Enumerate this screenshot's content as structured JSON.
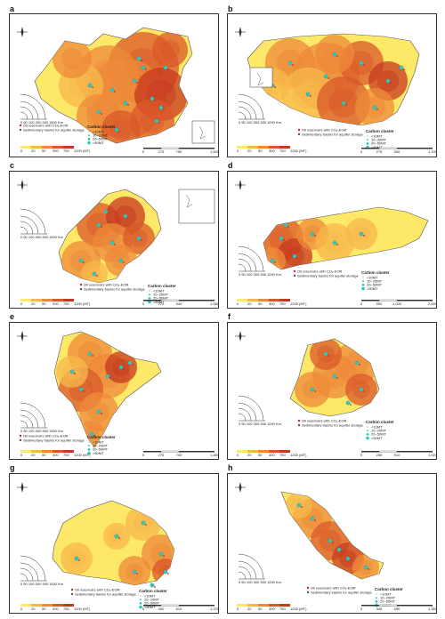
{
  "panels": [
    {
      "id": "a",
      "label": "a",
      "legend_title": "Carbon cluster",
      "cluster_items": [
        "<10MT",
        "10~20MT",
        "20~50MT",
        ">50MT"
      ],
      "oil_label": "Oil reservoirs with CO₂-EOR",
      "basin_label": "Sedimentary basins for aquifer storage",
      "color_scale_ticks": [
        "0",
        "20",
        "50",
        "300",
        "750",
        "1200 (MT)"
      ],
      "scale_ticks": [
        "0",
        "275",
        "750",
        "1,500"
      ],
      "radius_ticks": [
        "0 50 100 300 500",
        "1500 Km"
      ]
    },
    {
      "id": "b",
      "label": "b",
      "legend_title": "Carbon cluster",
      "cluster_items": [
        "<10MT",
        "10~20MT",
        "20~50MT",
        ">50MT"
      ],
      "oil_label": "Oil reservoirs with CO₂-EOR",
      "basin_label": "Sedimentary basins for aquifer storage",
      "color_scale_ticks": [
        "0",
        "20",
        "50",
        "300",
        "750",
        "1200 (MT)"
      ],
      "scale_ticks": [
        "0",
        "275",
        "550",
        "1,100"
      ],
      "radius_ticks": [
        "0 50 100 300 500",
        "1000 Km"
      ]
    },
    {
      "id": "c",
      "label": "c",
      "legend_title": "Carbon cluster",
      "cluster_items": [
        "<10MT",
        "10~20MT",
        "20~50MT",
        ">50MT"
      ],
      "oil_label": "Oil reservoirs with CO₂-EOR",
      "basin_label": "Sedimentary basins for aquifer storage",
      "color_scale_ticks": [
        "0",
        "20",
        "50",
        "300",
        "750",
        "1200 (MT)"
      ],
      "scale_ticks": [
        "0",
        "270",
        "540",
        "1,080"
      ],
      "radius_ticks": [
        "0 50 100 300 500",
        "1000 Km"
      ]
    },
    {
      "id": "d",
      "label": "d",
      "legend_title": "Carbon cluster",
      "cluster_items": [
        "<10MT",
        "10~20MT",
        "20~50MT",
        ">50MT"
      ],
      "oil_label": "Oil reservoirs with CO₂-EOR",
      "basin_label": "Sedimentary basins for aquifer storage",
      "color_scale_ticks": [
        "0",
        "20",
        "50",
        "300",
        "750",
        "1200 (MT)"
      ],
      "scale_ticks": [
        "0",
        "500",
        "1,000",
        "2,000"
      ],
      "radius_ticks": [
        "0 50 100 300 500",
        "1000 Km"
      ]
    },
    {
      "id": "e",
      "label": "e",
      "legend_title": "Carbon cluster",
      "cluster_items": [
        "<10MT",
        "10~20MT",
        "20~50MT",
        ">50MT"
      ],
      "oil_label": "Oil reservoirs with CO₂-EOR",
      "basin_label": "Sedimentary basins for aquifer storage",
      "color_scale_ticks": [
        "0",
        "20",
        "50",
        "300",
        "750",
        "1200 (MT)"
      ],
      "scale_ticks": [
        "0",
        "275",
        "740",
        "1,480"
      ],
      "radius_ticks": [
        "0 50 100 300 500",
        "1000 Km"
      ]
    },
    {
      "id": "f",
      "label": "f",
      "legend_title": "Carbon cluster",
      "cluster_items": [
        "<10MT",
        "10~20MT",
        "20~50MT",
        ">50MT"
      ],
      "oil_label": "Oil reservoirs with CO₂-EOR",
      "basin_label": "Sedimentary basins for aquifer storage",
      "color_scale_ticks": [
        "0",
        "20",
        "50",
        "300",
        "750",
        "1200 (MT)"
      ],
      "scale_ticks": [
        "0",
        "255",
        "510",
        "1,020"
      ],
      "radius_ticks": [
        "0 50 100 300 500",
        "1000 Km"
      ]
    },
    {
      "id": "g",
      "label": "g",
      "legend_title": "Carbon cluster",
      "cluster_items": [
        "<10MT",
        "10~20MT",
        "20~50MT",
        ">50MT"
      ],
      "oil_label": "Oil reservoirs with CO₂-EOR",
      "basin_label": "Sedimentary basins for aquifer storage",
      "color_scale_ticks": [
        "0",
        "20",
        "50",
        "300",
        "750",
        "1200 (MT)"
      ],
      "scale_ticks": [
        "0",
        "300",
        "610",
        "1,220"
      ],
      "radius_ticks": [
        "0 50 100 300 500",
        "1000 Km"
      ]
    },
    {
      "id": "h",
      "label": "h",
      "legend_title": "Carbon cluster",
      "cluster_items": [
        "<10MT",
        "10~20MT",
        "20~50MT",
        ">50MT"
      ],
      "oil_label": "Oil reservoirs with CO₂-EOR",
      "basin_label": "Sedimentary basins for aquifer storage",
      "color_scale_ticks": [
        "0",
        "20",
        "50",
        "300",
        "750",
        "1200 (MT)"
      ],
      "scale_ticks": [
        "0",
        "345",
        "690",
        "1,380"
      ],
      "radius_ticks": [
        "0 50 100 300 500",
        "1000 Km"
      ]
    }
  ],
  "colors": {
    "light": "#fde868",
    "mid": "#f7b84b",
    "orange": "#ed8a3a",
    "dark": "#d9582a",
    "red": "#c7381f",
    "teal": "#35c7b8",
    "oil": "#c62828",
    "basin": "#555555"
  }
}
